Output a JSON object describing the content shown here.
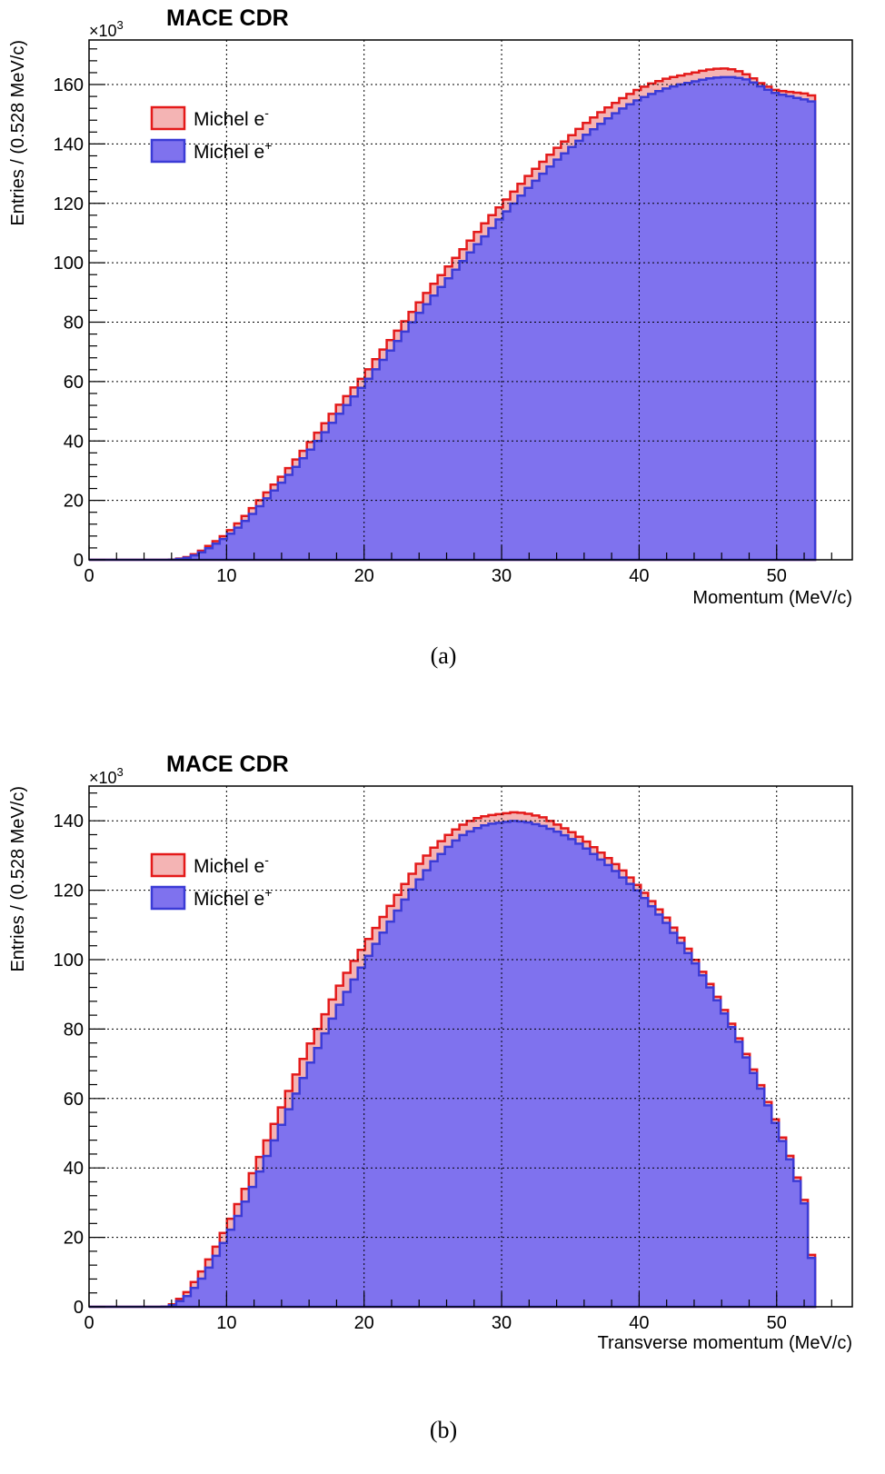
{
  "chart_data": [
    {
      "type": "area",
      "caption": "(a)",
      "title": "MACE CDR",
      "xlabel": "Momentum (MeV/c)",
      "ylabel": "Entries / (0.528 MeV/c)",
      "y_multiplier_label": "×10",
      "y_multiplier_exp": "3",
      "xlim": [
        0,
        55.5
      ],
      "ylim": [
        0,
        175
      ],
      "xticks": [
        0,
        10,
        20,
        30,
        40,
        50
      ],
      "yticks": [
        0,
        20,
        40,
        60,
        80,
        100,
        120,
        140,
        160
      ],
      "grid": true,
      "legend_position": "top-left",
      "bin_width": 0.528,
      "x_end": 52.8,
      "series": [
        {
          "name": "Michel e",
          "superscript": "-",
          "color": "#e41a1a",
          "fill": "#f4b4b4",
          "points": [
            [
              0,
              0
            ],
            [
              6,
              0
            ],
            [
              7,
              0.7
            ],
            [
              8,
              2.5
            ],
            [
              9,
              5.5
            ],
            [
              10,
              8.7
            ],
            [
              11,
              13
            ],
            [
              12,
              18
            ],
            [
              13,
              23
            ],
            [
              14,
              28
            ],
            [
              15,
              33.5
            ],
            [
              16,
              39
            ],
            [
              17,
              45
            ],
            [
              18,
              51
            ],
            [
              19,
              56.5
            ],
            [
              20,
              62
            ],
            [
              21,
              68.5
            ],
            [
              22,
              74.5
            ],
            [
              23,
              80.5
            ],
            [
              24,
              86.5
            ],
            [
              25,
              92.5
            ],
            [
              26,
              98
            ],
            [
              27,
              103.5
            ],
            [
              28,
              109
            ],
            [
              29,
              114.5
            ],
            [
              30,
              119.5
            ],
            [
              31,
              124.5
            ],
            [
              32,
              129.5
            ],
            [
              33,
              134
            ],
            [
              34,
              138.5
            ],
            [
              35,
              142.5
            ],
            [
              36,
              146.5
            ],
            [
              37,
              150
            ],
            [
              38,
              153
            ],
            [
              39,
              156
            ],
            [
              40,
              158.5
            ],
            [
              41,
              160.5
            ],
            [
              42,
              162
            ],
            [
              43,
              163
            ],
            [
              44,
              164
            ],
            [
              45,
              165
            ],
            [
              46,
              165.5
            ],
            [
              47,
              165
            ],
            [
              48,
              163
            ],
            [
              49,
              160
            ],
            [
              50,
              158
            ],
            [
              51,
              157.5
            ],
            [
              52,
              157
            ],
            [
              52.8,
              156
            ]
          ]
        },
        {
          "name": "Michel e",
          "superscript": "+",
          "color": "#3b3bd6",
          "fill": "#7f72ee",
          "points": [
            [
              0,
              0
            ],
            [
              6,
              0
            ],
            [
              7,
              0.5
            ],
            [
              8,
              2
            ],
            [
              9,
              4.7
            ],
            [
              10,
              7.7
            ],
            [
              11,
              11.5
            ],
            [
              12,
              16
            ],
            [
              13,
              21
            ],
            [
              14,
              26
            ],
            [
              15,
              31
            ],
            [
              16,
              36.5
            ],
            [
              17,
              42
            ],
            [
              18,
              48
            ],
            [
              19,
              53.5
            ],
            [
              20,
              59
            ],
            [
              21,
              65
            ],
            [
              22,
              71
            ],
            [
              23,
              77
            ],
            [
              24,
              83
            ],
            [
              25,
              88.5
            ],
            [
              26,
              94
            ],
            [
              27,
              99.5
            ],
            [
              28,
              105
            ],
            [
              29,
              110
            ],
            [
              30,
              115.5
            ],
            [
              31,
              120.5
            ],
            [
              32,
              125.5
            ],
            [
              33,
              130
            ],
            [
              34,
              134.5
            ],
            [
              35,
              138.5
            ],
            [
              36,
              142.5
            ],
            [
              37,
              146
            ],
            [
              38,
              149.5
            ],
            [
              39,
              152.5
            ],
            [
              40,
              155
            ],
            [
              41,
              157
            ],
            [
              42,
              158.7
            ],
            [
              43,
              160
            ],
            [
              44,
              161
            ],
            [
              45,
              162
            ],
            [
              46,
              162.5
            ],
            [
              47,
              162.5
            ],
            [
              48,
              161.5
            ],
            [
              49,
              159
            ],
            [
              50,
              157
            ],
            [
              51,
              156
            ],
            [
              52,
              155
            ],
            [
              52.8,
              154
            ]
          ]
        }
      ]
    },
    {
      "type": "area",
      "caption": "(b)",
      "title": "MACE CDR",
      "xlabel": "Transverse momentum (MeV/c)",
      "ylabel": "Entries / (0.528 MeV/c)",
      "y_multiplier_label": "×10",
      "y_multiplier_exp": "3",
      "xlim": [
        0,
        55.5
      ],
      "ylim": [
        0,
        150
      ],
      "xticks": [
        0,
        10,
        20,
        30,
        40,
        50
      ],
      "yticks": [
        0,
        20,
        40,
        60,
        80,
        100,
        120,
        140
      ],
      "grid": true,
      "legend_position": "top-left",
      "bin_width": 0.528,
      "x_end": 52.8,
      "series": [
        {
          "name": "Michel e",
          "superscript": "-",
          "color": "#e41a1a",
          "fill": "#f4b4b4",
          "points": [
            [
              0,
              0
            ],
            [
              5.5,
              0
            ],
            [
              6,
              0.5
            ],
            [
              7,
              3.5
            ],
            [
              8,
              9
            ],
            [
              9,
              15.5
            ],
            [
              10,
              23
            ],
            [
              11,
              31
            ],
            [
              12,
              39.5
            ],
            [
              13,
              48.5
            ],
            [
              14,
              57.5
            ],
            [
              15,
              66.5
            ],
            [
              16,
              75
            ],
            [
              17,
              83
            ],
            [
              18,
              91
            ],
            [
              19,
              98
            ],
            [
              20,
              104
            ],
            [
              21,
              110
            ],
            [
              22,
              116
            ],
            [
              23,
              122
            ],
            [
              24,
              127.5
            ],
            [
              25,
              132
            ],
            [
              26,
              135.5
            ],
            [
              27,
              138.5
            ],
            [
              28,
              140.5
            ],
            [
              29,
              141.5
            ],
            [
              30,
              142
            ],
            [
              31,
              142.5
            ],
            [
              32,
              142
            ],
            [
              33,
              141
            ],
            [
              34,
              139
            ],
            [
              35,
              137
            ],
            [
              36,
              134.5
            ],
            [
              37,
              131.5
            ],
            [
              38,
              128.5
            ],
            [
              39,
              125
            ],
            [
              40,
              121
            ],
            [
              41,
              116.5
            ],
            [
              42,
              112
            ],
            [
              43,
              106.5
            ],
            [
              44,
              100.5
            ],
            [
              45,
              94
            ],
            [
              46,
              87
            ],
            [
              47,
              79.5
            ],
            [
              48,
              71
            ],
            [
              49,
              62.5
            ],
            [
              50,
              53
            ],
            [
              51,
              43
            ],
            [
              52,
              31
            ],
            [
              52.5,
              17
            ],
            [
              52.8,
              0
            ]
          ]
        },
        {
          "name": "Michel e",
          "superscript": "+",
          "color": "#3b3bd6",
          "fill": "#7f72ee",
          "points": [
            [
              0,
              0
            ],
            [
              5.5,
              0
            ],
            [
              6,
              0.3
            ],
            [
              7,
              2.5
            ],
            [
              8,
              7
            ],
            [
              9,
              13
            ],
            [
              10,
              20
            ],
            [
              11,
              27.5
            ],
            [
              12,
              35.5
            ],
            [
              13,
              44
            ],
            [
              14,
              52.5
            ],
            [
              15,
              61
            ],
            [
              16,
              69.5
            ],
            [
              17,
              77.5
            ],
            [
              18,
              85.5
            ],
            [
              19,
              92.5
            ],
            [
              20,
              99
            ],
            [
              21,
              105.5
            ],
            [
              22,
              111.5
            ],
            [
              23,
              117.5
            ],
            [
              24,
              123
            ],
            [
              25,
              128
            ],
            [
              26,
              132
            ],
            [
              27,
              135.5
            ],
            [
              28,
              137.5
            ],
            [
              29,
              139
            ],
            [
              30,
              139.5
            ],
            [
              31,
              140
            ],
            [
              32,
              139.5
            ],
            [
              33,
              138.5
            ],
            [
              34,
              137
            ],
            [
              35,
              135
            ],
            [
              36,
              132.5
            ],
            [
              37,
              129.5
            ],
            [
              38,
              126.5
            ],
            [
              39,
              123
            ],
            [
              40,
              119.5
            ],
            [
              41,
              115
            ],
            [
              42,
              110.5
            ],
            [
              43,
              105
            ],
            [
              44,
              99.5
            ],
            [
              45,
              93
            ],
            [
              46,
              86
            ],
            [
              47,
              78.5
            ],
            [
              48,
              70
            ],
            [
              49,
              61.5
            ],
            [
              50,
              52
            ],
            [
              51,
              42
            ],
            [
              52,
              30
            ],
            [
              52.5,
              16
            ],
            [
              52.8,
              0
            ]
          ]
        }
      ]
    }
  ]
}
